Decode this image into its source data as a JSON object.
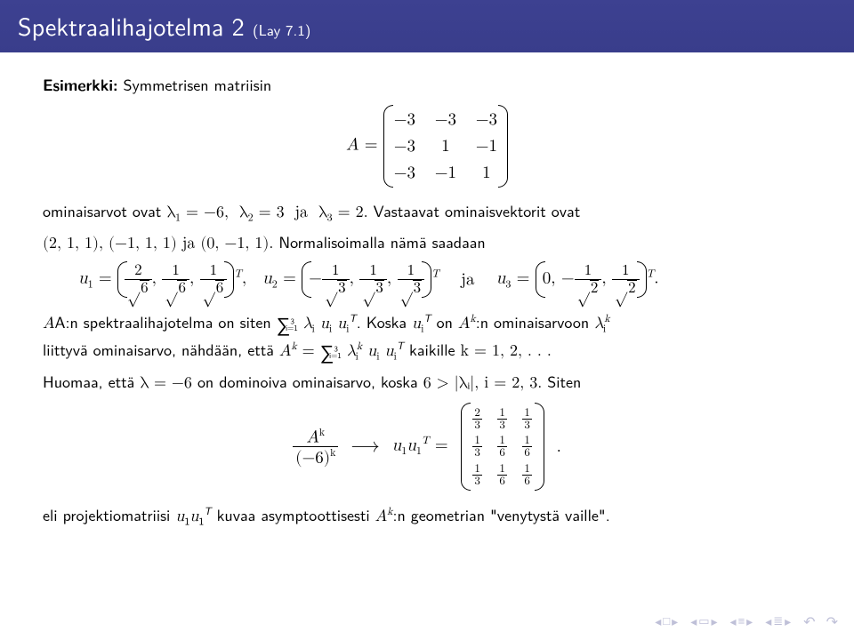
{
  "title": "Spektraalihajotelma 2",
  "title_ref": "(Lay 7.1)",
  "example_label": "Esimerkki:",
  "example_text": "Symmetrisen matriisin",
  "matrix_A": {
    "rows": [
      [
        "−3",
        "−3",
        "−3"
      ],
      [
        "−3",
        "1",
        "−1"
      ],
      [
        "−3",
        "−1",
        "1"
      ]
    ]
  },
  "eigvals_line_prefix": "ominaisarvot ovat ",
  "eigvals_math": "λ₁ = −6,  λ₂ = 3  ja  λ₃ = 2.",
  "eigvecs_line_prefix": "Vastaavat ominaisvektorit ovat",
  "eigvecs_math": "(2, 1, 1), (−1, 1, 1) ja (0, −1, 1).",
  "normalize_line": "Normalisoimalla nämä saadaan",
  "u1": {
    "entries_num": [
      "2",
      "1",
      "1"
    ],
    "entries_den": "6"
  },
  "u2": {
    "entries_num": [
      "1",
      "1",
      "1"
    ],
    "entries_den": "3",
    "first_neg": true
  },
  "u3": {
    "entries": [
      "0",
      "−",
      "1"
    ],
    "den": "2"
  },
  "spectral_line": "A:n spektraalihajotelma on siten ",
  "koska_line_a": "Koska ",
  "koska_line_b": " on ",
  "koska_line_c": ":n ominaisarvoon ",
  "liittyva_line": "liittyvä ominaisarvo, nähdään, että ",
  "kaikille": " kaikille ",
  "kvals": "k = 1, 2, . . .",
  "huomaa_line_a": "Huomaa, että ",
  "huomaa_line_b": " on dominoiva ominaisarvo, koska ",
  "huomaa_line_c": "  Siten",
  "lambda_dom": "λ = −6",
  "dom_ineq": "6 > |λᵢ|,  i = 2, 3.",
  "limit_lhs_num": "Aᵏ",
  "limit_lhs_den": "(−6)ᵏ",
  "limit_rhs": "u₁u₁ᵀ",
  "proj_matrix": {
    "rows": [
      [
        "2",
        "1",
        "1"
      ],
      [
        "1",
        "1",
        "1"
      ],
      [
        "1",
        "1",
        "1"
      ]
    ],
    "dens": [
      [
        "3",
        "3",
        "3"
      ],
      [
        "3",
        "6",
        "6"
      ],
      [
        "3",
        "6",
        "6"
      ]
    ]
  },
  "final_line_a": "eli projektiomatriisi ",
  "final_line_b": " kuvaa asymptoottisesti ",
  "final_line_c": ":n geometrian \"venytystä vaille\".",
  "colors": {
    "titlebar_bg": "#3b3f8f",
    "nav": "#bfc0d8",
    "text": "#000000",
    "bg": "#ffffff"
  }
}
